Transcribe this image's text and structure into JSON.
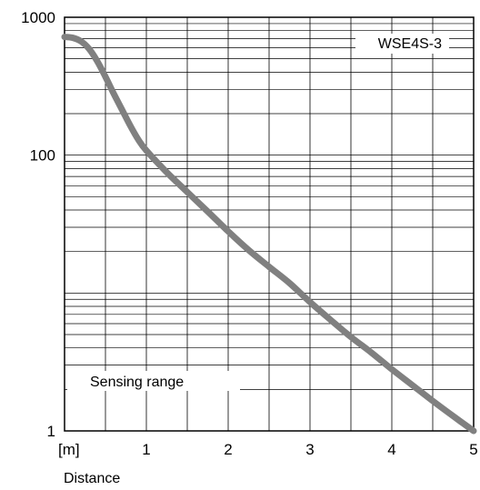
{
  "chart_data": {
    "type": "line",
    "title": "",
    "xlabel": "Distance",
    "x_unit_label": "[m]",
    "ylabel": "",
    "x_scale": "linear",
    "y_scale": "log",
    "xlim": [
      0,
      5
    ],
    "ylim": [
      1,
      1000
    ],
    "x_ticks": [
      1,
      2,
      3,
      4,
      5
    ],
    "x_tick_labels": [
      "1",
      "2",
      "3",
      "4",
      "5"
    ],
    "y_ticks": [
      1,
      100,
      1000
    ],
    "y_tick_labels": [
      "1",
      "100",
      "1000"
    ],
    "grid": true,
    "series": [
      {
        "name": "WSE4S-3",
        "color": "#808080",
        "x": [
          0,
          0.1,
          0.2,
          0.3,
          0.4,
          0.5,
          0.6,
          0.7,
          0.8,
          0.9,
          1.0,
          1.25,
          1.5,
          1.75,
          2.0,
          2.25,
          2.5,
          2.75,
          3.0,
          3.25,
          3.5,
          3.75,
          4.0,
          4.25,
          4.5,
          4.75,
          5.0
        ],
        "y": [
          720,
          710,
          670,
          590,
          480,
          370,
          280,
          215,
          165,
          130,
          108,
          75,
          54,
          39,
          28,
          20.5,
          15.5,
          11.8,
          8.6,
          6.4,
          4.8,
          3.7,
          2.8,
          2.15,
          1.65,
          1.28,
          1.0
        ]
      }
    ],
    "annotations": [
      "Sensing range"
    ],
    "legend": {
      "label": "WSE4S-3",
      "placement": "top-right"
    }
  }
}
